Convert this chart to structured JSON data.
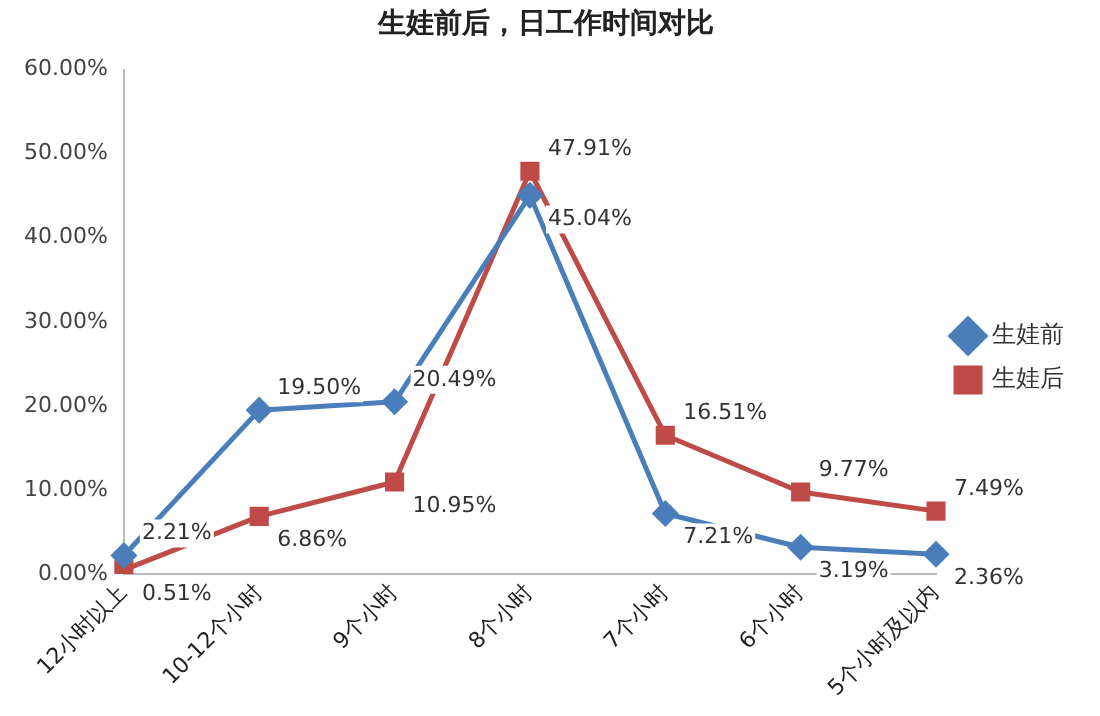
{
  "chart_data": {
    "type": "line",
    "title": "生娃前后，日工作时间对比",
    "categories": [
      "12小时以上",
      "10-12个小时",
      "9个小时",
      "8个小时",
      "7个小时",
      "6个小时",
      "5个小时及以内"
    ],
    "series": [
      {
        "name": "生娃前",
        "color": "#4a7ebb",
        "marker": "diamond",
        "values": [
          2.21,
          19.5,
          20.49,
          45.04,
          7.21,
          3.19,
          2.36
        ],
        "value_labels": [
          "2.21%",
          "19.50%",
          "20.49%",
          "45.04%",
          "7.21%",
          "3.19%",
          "2.36%"
        ]
      },
      {
        "name": "生娃后",
        "color": "#be4b48",
        "marker": "square",
        "values": [
          0.51,
          6.86,
          10.95,
          47.91,
          16.51,
          9.77,
          7.49
        ],
        "value_labels": [
          "0.51%",
          "6.86%",
          "10.95%",
          "47.91%",
          "16.51%",
          "9.77%",
          "7.49%"
        ]
      }
    ],
    "ylim": [
      0,
      60
    ],
    "yticks": [
      {
        "value": 0,
        "label": "0.00%"
      },
      {
        "value": 10,
        "label": "10.00%"
      },
      {
        "value": 20,
        "label": "20.00%"
      },
      {
        "value": 30,
        "label": "30.00%"
      },
      {
        "value": 40,
        "label": "40.00%"
      },
      {
        "value": 50,
        "label": "50.00%"
      },
      {
        "value": 60,
        "label": "60.00%"
      }
    ],
    "grid": false,
    "legend": "right",
    "line_style": "solid"
  }
}
